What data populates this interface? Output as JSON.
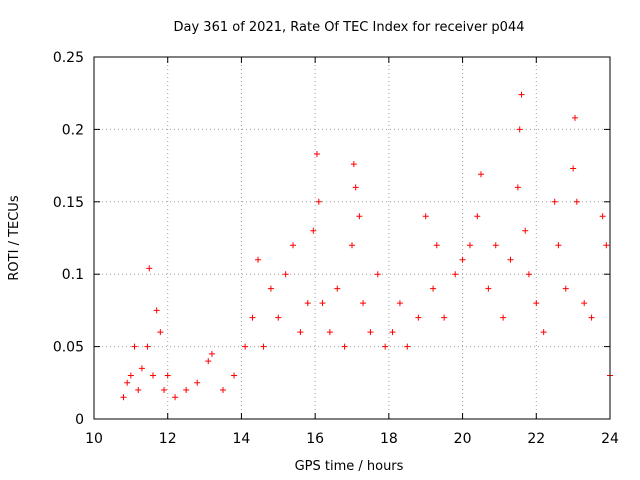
{
  "chart_data": {
    "type": "scatter",
    "title": "Day 361 of 2021, Rate Of TEC Index for receiver p044",
    "xlabel": "GPS time / hours",
    "ylabel": "ROTI / TECUs",
    "xlim": [
      10,
      24
    ],
    "ylim": [
      0,
      0.25
    ],
    "x_ticks": [
      10,
      12,
      14,
      16,
      18,
      20,
      22,
      24
    ],
    "y_ticks": [
      0,
      0.05,
      0.1,
      0.15,
      0.2,
      0.25
    ],
    "x_tick_labels": [
      "10",
      "12",
      "14",
      "16",
      "18",
      "20",
      "22",
      "24"
    ],
    "y_tick_labels": [
      "0",
      "0.05",
      "0.1",
      "0.15",
      "0.2",
      "0.25"
    ],
    "grid": true,
    "marker": "plus",
    "color": "#ff0000",
    "series": [
      {
        "name": "ROTI",
        "points": [
          [
            10.8,
            0.015
          ],
          [
            10.9,
            0.025
          ],
          [
            11.0,
            0.03
          ],
          [
            11.1,
            0.05
          ],
          [
            11.2,
            0.02
          ],
          [
            11.3,
            0.035
          ],
          [
            11.45,
            0.05
          ],
          [
            11.5,
            0.104
          ],
          [
            11.6,
            0.03
          ],
          [
            11.7,
            0.075
          ],
          [
            11.8,
            0.06
          ],
          [
            11.9,
            0.02
          ],
          [
            12.0,
            0.03
          ],
          [
            12.2,
            0.015
          ],
          [
            12.5,
            0.02
          ],
          [
            12.8,
            0.025
          ],
          [
            13.1,
            0.04
          ],
          [
            13.2,
            0.045
          ],
          [
            13.5,
            0.02
          ],
          [
            13.8,
            0.03
          ],
          [
            14.1,
            0.05
          ],
          [
            14.3,
            0.07
          ],
          [
            14.45,
            0.11
          ],
          [
            14.6,
            0.05
          ],
          [
            14.8,
            0.09
          ],
          [
            15.0,
            0.07
          ],
          [
            15.2,
            0.1
          ],
          [
            15.4,
            0.12
          ],
          [
            15.6,
            0.06
          ],
          [
            15.8,
            0.08
          ],
          [
            15.95,
            0.13
          ],
          [
            16.05,
            0.183
          ],
          [
            16.1,
            0.15
          ],
          [
            16.2,
            0.08
          ],
          [
            16.4,
            0.06
          ],
          [
            16.6,
            0.09
          ],
          [
            16.8,
            0.05
          ],
          [
            17.0,
            0.12
          ],
          [
            17.05,
            0.176
          ],
          [
            17.1,
            0.16
          ],
          [
            17.2,
            0.14
          ],
          [
            17.3,
            0.08
          ],
          [
            17.5,
            0.06
          ],
          [
            17.7,
            0.1
          ],
          [
            17.9,
            0.05
          ],
          [
            18.1,
            0.06
          ],
          [
            18.3,
            0.08
          ],
          [
            18.5,
            0.05
          ],
          [
            18.8,
            0.07
          ],
          [
            19.0,
            0.14
          ],
          [
            19.2,
            0.09
          ],
          [
            19.3,
            0.12
          ],
          [
            19.5,
            0.07
          ],
          [
            19.8,
            0.1
          ],
          [
            20.0,
            0.11
          ],
          [
            20.2,
            0.12
          ],
          [
            20.4,
            0.14
          ],
          [
            20.5,
            0.169
          ],
          [
            20.7,
            0.09
          ],
          [
            20.9,
            0.12
          ],
          [
            21.1,
            0.07
          ],
          [
            21.3,
            0.11
          ],
          [
            21.5,
            0.16
          ],
          [
            21.55,
            0.2
          ],
          [
            21.6,
            0.224
          ],
          [
            21.7,
            0.13
          ],
          [
            21.8,
            0.1
          ],
          [
            22.0,
            0.08
          ],
          [
            22.2,
            0.06
          ],
          [
            22.5,
            0.15
          ],
          [
            22.6,
            0.12
          ],
          [
            22.8,
            0.09
          ],
          [
            23.0,
            0.173
          ],
          [
            23.05,
            0.208
          ],
          [
            23.1,
            0.15
          ],
          [
            23.3,
            0.08
          ],
          [
            23.5,
            0.07
          ],
          [
            23.8,
            0.14
          ],
          [
            23.9,
            0.12
          ],
          [
            24.0,
            0.03
          ]
        ]
      }
    ]
  }
}
